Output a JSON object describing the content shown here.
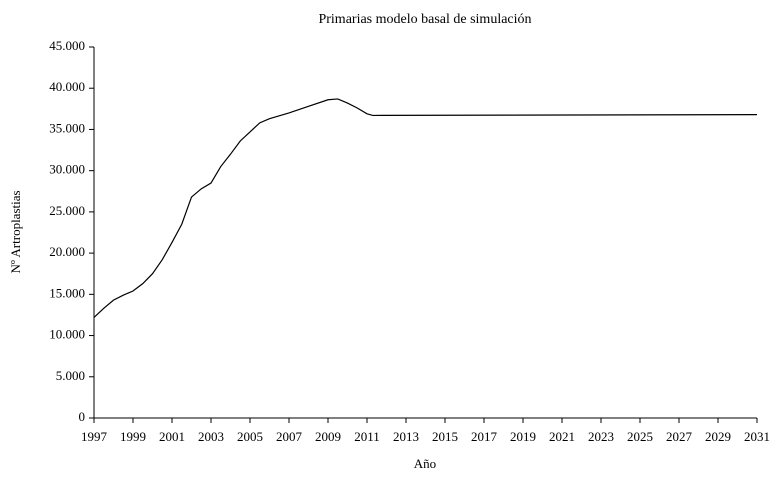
{
  "chart_data": {
    "type": "line",
    "title": "Primarias modelo basal de simulación",
    "x_label": "Año",
    "y_label": "Nº Artroplastias",
    "x": [
      1997,
      1997.5,
      1998,
      1998.5,
      1999,
      1999.5,
      2000,
      2000.5,
      2001,
      2001.5,
      2002,
      2002.5,
      2003,
      2003.5,
      2004,
      2004.5,
      2005,
      2005.5,
      2006,
      2007,
      2008,
      2009,
      2009.5,
      2010,
      2010.5,
      2011,
      2011.3,
      2031
    ],
    "series": [
      {
        "name": "Primarias",
        "color": "#000000",
        "values": [
          12200,
          13300,
          14300,
          14900,
          15400,
          16300,
          17500,
          19200,
          21300,
          23500,
          26800,
          27800,
          28500,
          30500,
          32000,
          33600,
          34700,
          35800,
          36300,
          37000,
          37800,
          38600,
          38700,
          38200,
          37600,
          36900,
          36700,
          36800
        ]
      }
    ],
    "xlim": [
      1997,
      2031
    ],
    "xticks": [
      1997,
      1999,
      2001,
      2003,
      2005,
      2007,
      2009,
      2011,
      2013,
      2015,
      2017,
      2019,
      2021,
      2023,
      2025,
      2027,
      2029,
      2031
    ],
    "ylim": [
      0,
      45000
    ],
    "yticks": [
      0,
      {
        "value": 5000,
        "label": "5.000"
      },
      {
        "value": 10000,
        "label": "10.000"
      },
      {
        "value": 15000,
        "label": "15.000"
      },
      {
        "value": 20000,
        "label": "20.000"
      },
      {
        "value": 25000,
        "label": "25.000"
      },
      {
        "value": 30000,
        "label": "30.000"
      },
      {
        "value": 35000,
        "label": "35.000"
      },
      {
        "value": 40000,
        "label": "40.000"
      },
      {
        "value": 45000,
        "label": "45.000"
      }
    ]
  }
}
